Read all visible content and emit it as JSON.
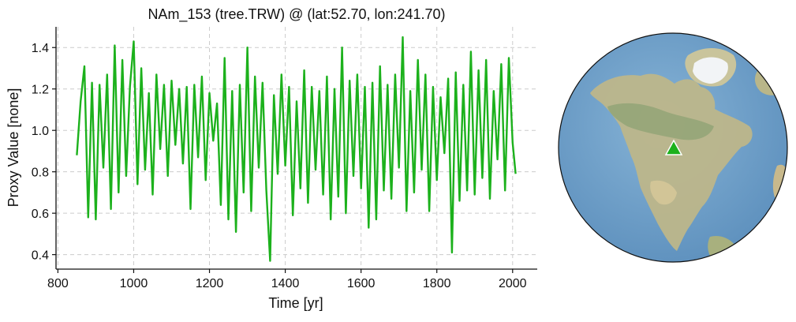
{
  "colors": {
    "series": "#1cb11c",
    "grid": "#cccccc",
    "axis": "#111111",
    "ocean": "#6f9ec6",
    "land": "#b9b58a",
    "ice": "#f2f4f6",
    "marker": "#1cb11c"
  },
  "map": {
    "projection": "orthographic",
    "marker_icon": "triangle-marker-icon",
    "marker_lat": 52.7,
    "marker_lon": 241.7
  },
  "chart_data": {
    "type": "line",
    "title": "NAm_153 (tree.TRW) @ (lat:52.70, lon:241.70)",
    "xlabel": "Time [yr]",
    "ylabel": "Proxy Value [none]",
    "xlim": [
      795,
      2065
    ],
    "ylim": [
      0.33,
      1.5
    ],
    "xticks": [
      800,
      1000,
      1200,
      1400,
      1600,
      1800,
      2000
    ],
    "yticks": [
      0.4,
      0.6,
      0.8,
      1.0,
      1.2,
      1.4
    ],
    "xtick_labels": [
      "800",
      "1000",
      "1200",
      "1400",
      "1600",
      "1800",
      "2000"
    ],
    "ytick_labels": [
      "0.4",
      "0.6",
      "0.8",
      "1.0",
      "1.2",
      "1.4"
    ],
    "grid": true,
    "series": [
      {
        "x": [
          850,
          860,
          870,
          880,
          890,
          900,
          910,
          920,
          930,
          940,
          950,
          960,
          970,
          980,
          990,
          1000,
          1010,
          1020,
          1030,
          1040,
          1050,
          1060,
          1070,
          1080,
          1090,
          1100,
          1110,
          1120,
          1130,
          1140,
          1150,
          1160,
          1170,
          1180,
          1190,
          1200,
          1210,
          1220,
          1230,
          1240,
          1250,
          1260,
          1270,
          1280,
          1290,
          1300,
          1310,
          1320,
          1330,
          1340,
          1350,
          1360,
          1370,
          1380,
          1390,
          1400,
          1410,
          1420,
          1430,
          1440,
          1450,
          1460,
          1470,
          1480,
          1490,
          1500,
          1510,
          1520,
          1530,
          1540,
          1550,
          1560,
          1570,
          1580,
          1590,
          1600,
          1610,
          1620,
          1630,
          1640,
          1650,
          1660,
          1670,
          1680,
          1690,
          1700,
          1710,
          1720,
          1730,
          1740,
          1750,
          1760,
          1770,
          1780,
          1790,
          1800,
          1810,
          1820,
          1830,
          1840,
          1850,
          1860,
          1870,
          1880,
          1890,
          1900,
          1910,
          1920,
          1930,
          1940,
          1950,
          1960,
          1970,
          1980,
          1990,
          2000,
          2008
        ],
        "y": [
          0.88,
          1.14,
          1.31,
          0.58,
          1.23,
          0.57,
          1.22,
          0.82,
          1.27,
          0.62,
          1.41,
          0.7,
          1.34,
          0.78,
          1.21,
          1.43,
          0.74,
          1.3,
          0.81,
          1.18,
          0.69,
          1.27,
          0.91,
          1.22,
          0.78,
          1.24,
          0.93,
          1.2,
          0.84,
          1.21,
          0.62,
          1.22,
          0.87,
          1.26,
          0.76,
          1.18,
          0.95,
          1.13,
          0.64,
          1.35,
          0.57,
          1.19,
          0.51,
          1.22,
          0.7,
          1.4,
          0.61,
          1.26,
          0.82,
          1.23,
          0.71,
          0.37,
          1.17,
          0.79,
          1.27,
          0.83,
          1.21,
          0.59,
          1.14,
          0.72,
          1.29,
          0.65,
          1.21,
          0.81,
          1.19,
          0.69,
          1.26,
          0.57,
          1.2,
          0.68,
          1.4,
          0.6,
          1.24,
          0.78,
          1.27,
          0.72,
          1.21,
          0.53,
          1.23,
          0.57,
          1.31,
          0.71,
          1.22,
          0.67,
          1.27,
          0.82,
          1.45,
          0.61,
          1.19,
          0.7,
          1.34,
          0.81,
          1.27,
          0.61,
          1.21,
          0.76,
          1.16,
          0.89,
          1.25,
          0.41,
          1.28,
          0.66,
          1.22,
          0.71,
          1.38,
          0.69,
          1.29,
          0.77,
          1.34,
          0.67,
          1.19,
          0.86,
          1.32,
          0.71,
          1.35,
          0.94,
          0.79
        ]
      }
    ]
  }
}
